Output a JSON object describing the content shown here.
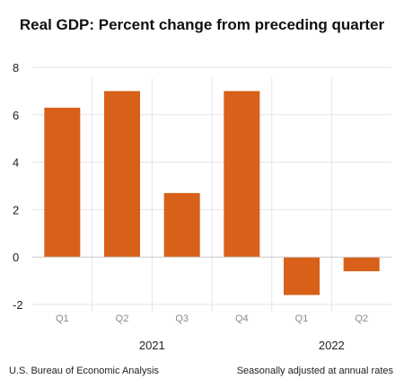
{
  "chart_data": {
    "type": "bar",
    "title": "Real GDP:  Percent change from preceding quarter",
    "categories": [
      "Q1",
      "Q2",
      "Q3",
      "Q4",
      "Q1",
      "Q2"
    ],
    "groups": [
      {
        "label": "2021",
        "categories": [
          "Q1",
          "Q2",
          "Q3",
          "Q4"
        ]
      },
      {
        "label": "2022",
        "categories": [
          "Q1",
          "Q2"
        ]
      }
    ],
    "values": [
      6.3,
      7.0,
      2.7,
      7.0,
      -1.6,
      -0.6
    ],
    "ylim": [
      -2,
      8
    ],
    "yticks": [
      "8",
      "6",
      "4",
      "2",
      "0",
      "-2"
    ],
    "grid": true,
    "bar_color": "#d86019",
    "source_note": "U.S. Bureau of Economic Analysis",
    "adjustment_note": "Seasonally adjusted at annual rates"
  }
}
